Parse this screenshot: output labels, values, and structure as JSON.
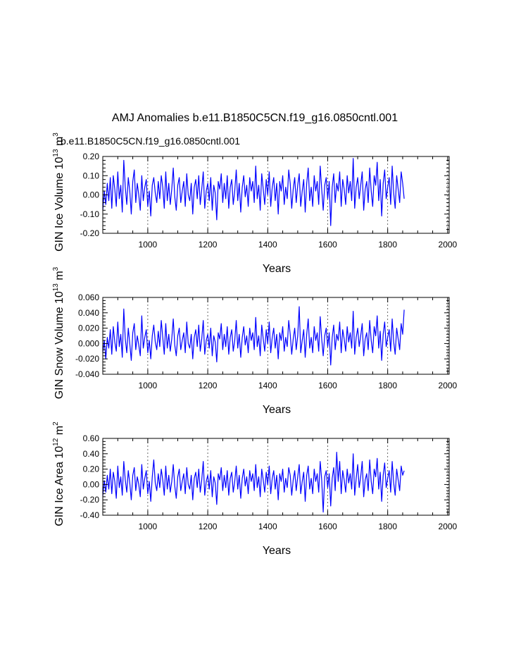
{
  "figure": {
    "title": "AMJ Anomalies b.e11.B1850C5CN.f19_g16.0850cntl.001",
    "case_label": "b.e11.B1850C5CN.f19_g16.0850cntl.001",
    "case_label_color": "#0000ff",
    "line_color": "#0000ff"
  },
  "chart_data": [
    {
      "type": "line",
      "name": "ice-volume",
      "ylabel": "GIN Ice Volume 10",
      "ylabel_sup": "13",
      "ylabel_unit": " m",
      "ylabel_unit_sup": "3",
      "xlabel": "Years",
      "xlim": [
        850,
        2005
      ],
      "ylim": [
        -0.2,
        0.2
      ],
      "yticks": [
        -0.2,
        -0.1,
        0.0,
        0.1,
        0.2
      ],
      "ytick_labels": [
        "-0.20",
        "-0.10",
        "0.00",
        "0.10",
        "0.20"
      ],
      "xticks": [
        1000,
        1200,
        1400,
        1600,
        1800,
        2000
      ],
      "xtick_labels": [
        "1000",
        "1200",
        "1400",
        "1600",
        "1800",
        "2000"
      ],
      "series": {
        "name": "GIN Ice Volume",
        "year_start": 850,
        "year_step": 5,
        "values": [
          -0.08,
          0.02,
          -0.05,
          0.06,
          -0.03,
          0.09,
          -0.07,
          0.1,
          0.03,
          -0.06,
          0.12,
          -0.02,
          0.05,
          -0.09,
          0.18,
          0.04,
          -0.05,
          0.09,
          0.02,
          -0.1,
          0.07,
          0.13,
          -0.04,
          0.06,
          0.0,
          -0.08,
          0.1,
          -0.03,
          0.04,
          0.08,
          -0.06,
          0.02,
          -0.11,
          0.05,
          0.09,
          0.01,
          -0.04,
          0.07,
          -0.02,
          0.1,
          0.04,
          -0.07,
          0.12,
          -0.03,
          0.06,
          -0.05,
          0.03,
          0.14,
          -0.01,
          -0.08,
          0.05,
          0.09,
          -0.04,
          0.02,
          0.07,
          -0.06,
          0.11,
          0.0,
          -0.03,
          0.06,
          -0.1,
          0.04,
          0.08,
          -0.02,
          0.1,
          -0.05,
          0.03,
          0.12,
          -0.07,
          0.02,
          0.06,
          -0.03,
          0.09,
          -0.08,
          0.05,
          0.01,
          -0.13,
          0.07,
          0.03,
          0.11,
          -0.04,
          0.06,
          -0.02,
          0.1,
          -0.07,
          0.04,
          0.08,
          -0.05,
          0.02,
          0.13,
          -0.03,
          0.06,
          -0.09,
          0.04,
          0.1,
          -0.01,
          0.05,
          -0.06,
          0.09,
          0.02,
          0.07,
          -0.04,
          0.15,
          -0.02,
          0.05,
          -0.08,
          0.11,
          0.03,
          -0.05,
          0.08,
          0.0,
          0.12,
          -0.06,
          0.04,
          0.09,
          -0.03,
          0.06,
          -0.1,
          0.07,
          0.02,
          0.1,
          -0.05,
          0.04,
          -0.02,
          0.13,
          0.06,
          -0.07,
          0.03,
          0.09,
          -0.04,
          0.05,
          0.11,
          -0.06,
          0.02,
          0.08,
          -0.09,
          0.06,
          0.14,
          -0.03,
          0.04,
          -0.06,
          0.1,
          0.02,
          0.07,
          -0.05,
          0.15,
          0.03,
          -0.08,
          0.05,
          0.09,
          -0.02,
          0.07,
          -0.16,
          0.04,
          0.11,
          -0.04,
          0.06,
          0.02,
          0.12,
          -0.06,
          0.08,
          0.03,
          -0.05,
          0.1,
          0.01,
          0.07,
          -0.03,
          0.19,
          -0.07,
          0.04,
          0.09,
          -0.02,
          0.05,
          0.12,
          -0.08,
          0.03,
          0.07,
          -0.04,
          0.14,
          0.02,
          -0.06,
          0.1,
          0.05,
          0.17,
          -0.03,
          0.08,
          -0.11,
          0.06,
          0.13,
          -0.02,
          0.04,
          0.09,
          -0.05,
          0.15,
          0.01,
          -0.07,
          0.1,
          0.03,
          -0.04,
          0.12,
          0.06,
          -0.02
        ]
      }
    },
    {
      "type": "line",
      "name": "snow-volume",
      "ylabel": "GIN Snow Volume 10",
      "ylabel_sup": "13",
      "ylabel_unit": " m",
      "ylabel_unit_sup": "3",
      "xlabel": "Years",
      "xlim": [
        850,
        2005
      ],
      "ylim": [
        -0.04,
        0.06
      ],
      "yticks": [
        -0.04,
        -0.02,
        0.0,
        0.02,
        0.04,
        0.06
      ],
      "ytick_labels": [
        "-0.040",
        "-0.020",
        "0.000",
        "0.020",
        "0.040",
        "0.060"
      ],
      "xticks": [
        1000,
        1200,
        1400,
        1600,
        1800,
        2000
      ],
      "xtick_labels": [
        "1000",
        "1200",
        "1400",
        "1600",
        "1800",
        "2000"
      ],
      "series": {
        "name": "GIN Snow Volume",
        "year_start": 850,
        "year_step": 5,
        "values": [
          -0.012,
          0.004,
          -0.02,
          0.008,
          -0.006,
          0.018,
          -0.014,
          0.022,
          0.002,
          -0.01,
          0.028,
          -0.004,
          0.012,
          -0.018,
          0.045,
          0.006,
          -0.012,
          0.02,
          0.0,
          -0.022,
          0.014,
          0.026,
          -0.008,
          0.01,
          -0.002,
          -0.016,
          0.036,
          -0.006,
          0.008,
          0.018,
          -0.012,
          0.004,
          -0.02,
          0.01,
          0.024,
          0.002,
          -0.008,
          0.016,
          -0.004,
          0.03,
          0.008,
          -0.014,
          0.026,
          -0.006,
          0.012,
          -0.01,
          0.006,
          0.032,
          -0.002,
          -0.016,
          0.01,
          0.02,
          -0.008,
          0.004,
          0.014,
          -0.012,
          0.028,
          0.0,
          -0.006,
          0.012,
          -0.02,
          0.008,
          0.018,
          -0.004,
          0.024,
          -0.01,
          0.006,
          0.03,
          -0.014,
          0.004,
          0.012,
          -0.006,
          0.02,
          -0.016,
          0.01,
          0.002,
          -0.024,
          0.014,
          0.006,
          0.026,
          -0.008,
          0.012,
          -0.004,
          0.022,
          -0.014,
          0.008,
          0.018,
          -0.01,
          0.004,
          0.03,
          -0.006,
          0.012,
          -0.018,
          0.008,
          0.022,
          -0.002,
          0.01,
          -0.012,
          0.02,
          0.004,
          0.014,
          -0.008,
          0.034,
          -0.004,
          0.01,
          -0.016,
          0.024,
          0.006,
          -0.01,
          0.018,
          0.0,
          0.028,
          -0.012,
          0.008,
          0.02,
          -0.006,
          0.012,
          -0.02,
          0.014,
          0.004,
          0.022,
          -0.01,
          0.008,
          -0.004,
          0.03,
          0.012,
          -0.014,
          0.006,
          0.02,
          -0.008,
          0.01,
          0.048,
          -0.012,
          0.004,
          0.018,
          -0.018,
          0.012,
          0.032,
          -0.006,
          0.008,
          -0.012,
          0.022,
          0.004,
          0.014,
          -0.01,
          0.035,
          0.006,
          -0.016,
          0.01,
          0.02,
          -0.004,
          0.014,
          -0.028,
          0.008,
          0.024,
          -0.008,
          0.012,
          0.004,
          0.028,
          -0.012,
          0.018,
          0.006,
          -0.01,
          0.022,
          0.002,
          0.014,
          -0.006,
          0.042,
          -0.014,
          0.008,
          0.02,
          -0.004,
          0.01,
          0.026,
          -0.016,
          0.006,
          0.014,
          -0.008,
          0.03,
          0.004,
          -0.012,
          0.022,
          0.01,
          0.036,
          -0.006,
          0.016,
          -0.022,
          0.012,
          0.028,
          -0.004,
          0.008,
          0.018,
          -0.01,
          0.032,
          0.002,
          -0.014,
          0.02,
          0.006,
          -0.008,
          0.026,
          0.012,
          0.044
        ]
      }
    },
    {
      "type": "line",
      "name": "ice-area",
      "ylabel": "GIN Ice Area 10",
      "ylabel_sup": "12",
      "ylabel_unit": " m",
      "ylabel_unit_sup": "2",
      "xlabel": "Years",
      "xlim": [
        850,
        2005
      ],
      "ylim": [
        -0.4,
        0.6
      ],
      "yticks": [
        -0.4,
        -0.2,
        0.0,
        0.2,
        0.4,
        0.6
      ],
      "ytick_labels": [
        "-0.40",
        "-0.20",
        "0.00",
        "0.20",
        "0.40",
        "0.60"
      ],
      "xticks": [
        1000,
        1200,
        1400,
        1600,
        1800,
        2000
      ],
      "xtick_labels": [
        "1000",
        "1200",
        "1400",
        "1600",
        "1800",
        "2000"
      ],
      "series": {
        "name": "GIN Ice Area",
        "year_start": 850,
        "year_step": 5,
        "values": [
          -0.15,
          0.05,
          -0.1,
          0.12,
          -0.06,
          0.2,
          -0.12,
          0.16,
          0.04,
          -0.18,
          0.24,
          -0.04,
          0.1,
          -0.14,
          0.3,
          0.06,
          -0.1,
          0.18,
          0.02,
          -0.2,
          0.12,
          0.22,
          -0.08,
          0.1,
          0.0,
          -0.16,
          0.26,
          -0.06,
          0.08,
          0.18,
          -0.12,
          0.04,
          -0.22,
          0.1,
          0.32,
          0.02,
          -0.08,
          0.14,
          -0.04,
          0.2,
          0.06,
          -0.14,
          0.24,
          -0.06,
          0.12,
          -0.1,
          0.04,
          0.26,
          -0.02,
          -0.18,
          0.1,
          0.2,
          -0.08,
          0.04,
          0.14,
          -0.12,
          0.22,
          0.0,
          -0.06,
          0.12,
          -0.2,
          0.08,
          0.16,
          -0.04,
          0.2,
          -0.1,
          0.06,
          0.3,
          -0.14,
          0.04,
          0.12,
          -0.06,
          0.18,
          -0.16,
          0.1,
          0.02,
          -0.26,
          0.14,
          0.06,
          0.22,
          -0.08,
          0.12,
          -0.04,
          0.18,
          -0.14,
          0.08,
          0.16,
          -0.1,
          0.04,
          0.24,
          -0.06,
          0.12,
          -0.18,
          0.08,
          0.2,
          -0.02,
          0.1,
          -0.12,
          0.18,
          0.04,
          0.14,
          -0.08,
          0.26,
          -0.04,
          0.1,
          -0.16,
          0.2,
          0.06,
          -0.1,
          0.16,
          0.0,
          0.24,
          -0.12,
          0.08,
          0.18,
          -0.06,
          0.12,
          -0.2,
          0.14,
          0.04,
          0.2,
          -0.1,
          0.08,
          -0.04,
          0.22,
          0.12,
          -0.14,
          0.06,
          0.18,
          -0.08,
          0.1,
          0.26,
          -0.12,
          0.04,
          0.16,
          -0.22,
          0.12,
          0.24,
          -0.06,
          0.08,
          -0.12,
          0.2,
          0.04,
          0.14,
          -0.1,
          0.3,
          0.06,
          -0.36,
          0.1,
          0.18,
          -0.04,
          0.14,
          -0.28,
          0.08,
          0.22,
          -0.08,
          0.42,
          0.04,
          0.3,
          -0.12,
          0.18,
          0.06,
          -0.1,
          0.2,
          0.02,
          0.14,
          -0.06,
          0.4,
          -0.14,
          0.08,
          0.26,
          -0.04,
          0.1,
          0.3,
          -0.16,
          0.06,
          0.14,
          -0.08,
          0.32,
          0.04,
          -0.12,
          0.2,
          0.1,
          0.34,
          -0.06,
          0.16,
          -0.22,
          0.12,
          0.28,
          -0.04,
          0.08,
          0.18,
          -0.1,
          0.3,
          0.02,
          -0.14,
          0.2,
          0.06,
          -0.08,
          0.24,
          0.12,
          0.18
        ]
      }
    }
  ]
}
